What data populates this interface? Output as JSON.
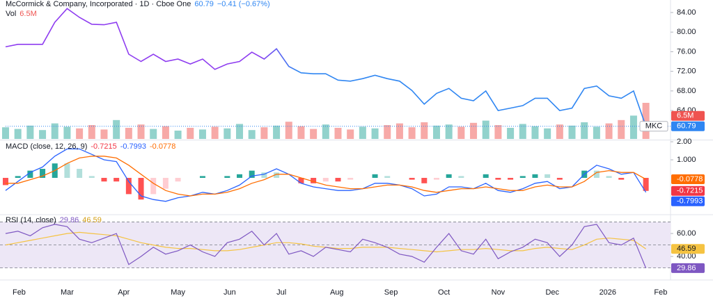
{
  "chart_data": [
    {
      "type": "line",
      "title": "McCormick & Company, Incorporated · 1D · Cboe One",
      "change": "−0.41 (−0.67%)",
      "symbol": "MKC",
      "colors": [
        "#8e3cf0",
        "#2f86f2"
      ],
      "series": [
        {
          "color": "#2f86f2",
          "values": [
            77,
            77.5,
            77.5,
            77.5,
            82,
            84.8,
            83,
            81.6,
            81.5,
            82,
            75.5,
            74,
            75.5,
            74,
            74.5,
            73.5,
            74.5,
            72.4,
            73.5,
            74,
            75.9,
            74.5,
            76.6,
            73,
            71.7,
            71.5,
            71.5,
            70.2,
            70,
            70.5,
            71.2,
            70.5,
            70,
            68.1,
            65.3,
            67.5,
            68.5,
            66.5,
            66,
            68,
            64,
            64.5,
            65,
            66.5,
            66.5,
            64,
            64.5,
            68.5,
            69,
            67,
            66.5,
            68,
            60.79
          ]
        }
      ],
      "volume": {
        "name": "Vol",
        "last_label": "6.5M",
        "up_color": "#26a69a",
        "down_color": "#ef5350",
        "ylim": [
          0,
          25
        ],
        "values": [
          2.1,
          1.8,
          2.4,
          1.6,
          2.8,
          2.2,
          1.9,
          2.5,
          1.7,
          3.4,
          2.0,
          2.6,
          1.8,
          2.3,
          1.5,
          2.0,
          1.7,
          2.2,
          1.9,
          2.7,
          1.6,
          2.1,
          2.4,
          3.1,
          2.3,
          1.8,
          2.6,
          2.0,
          1.7,
          2.2,
          1.9,
          2.5,
          2.8,
          2.1,
          3.0,
          2.4,
          2.6,
          2.2,
          2.9,
          3.3,
          2.5,
          2.0,
          2.7,
          2.3,
          1.9,
          2.6,
          2.4,
          3.0,
          2.2,
          2.8,
          3.4,
          4.2,
          6.5
        ]
      },
      "xlim": [
        0,
        54
      ],
      "xticks": [
        {
          "value": 1.1,
          "label": "Feb"
        },
        {
          "value": 5.0,
          "label": "Mar"
        },
        {
          "value": 9.6,
          "label": "Apr"
        },
        {
          "value": 14.0,
          "label": "May"
        },
        {
          "value": 18.2,
          "label": "Jun"
        },
        {
          "value": 22.4,
          "label": "Jul"
        },
        {
          "value": 26.9,
          "label": "Aug"
        },
        {
          "value": 31.3,
          "label": "Sep"
        },
        {
          "value": 35.6,
          "label": "Oct"
        },
        {
          "value": 40.0,
          "label": "Nov"
        },
        {
          "value": 44.4,
          "label": "Dec"
        },
        {
          "value": 48.9,
          "label": "2026"
        },
        {
          "value": 53.2,
          "label": "Feb"
        }
      ],
      "ylim": [
        58.2,
        86.55
      ],
      "yticks": [
        {
          "value": 64,
          "label": "64.00"
        },
        {
          "value": 68,
          "label": "68.00"
        },
        {
          "value": 72,
          "label": "72.00"
        },
        {
          "value": 76,
          "label": "76.00"
        },
        {
          "value": 80,
          "label": "80.00"
        },
        {
          "value": 84,
          "label": "84.00"
        }
      ]
    },
    {
      "type": "macd",
      "title": "MACD (close, 12, 26, 9)",
      "colors": [
        "#26a69a",
        "#b2dfdb",
        "#ff5252",
        "#ffcdd2"
      ],
      "series": [
        {
          "color": "#f23645",
          "values": [
            -0.4,
            0.1,
            0.4,
            0.5,
            0.8,
            0.8,
            0.5,
            0.1,
            -0.2,
            -0.2,
            -0.9,
            -1.2,
            -0.9,
            -0.6,
            -0.2,
            0.0,
            0.1,
            0.0,
            0.1,
            0.2,
            0.4,
            0.3,
            0.3,
            0.0,
            -0.3,
            -0.3,
            -0.2,
            -0.2,
            -0.1,
            0.0,
            0.2,
            0.1,
            0.0,
            -0.1,
            -0.3,
            -0.1,
            0.2,
            0.1,
            0.0,
            0.2,
            -0.1,
            -0.1,
            0.1,
            0.2,
            0.2,
            -0.1,
            0.0,
            0.4,
            0.4,
            0.1,
            -0.1,
            0.0,
            -0.7215
          ]
        },
        {
          "color": "#2962ff",
          "values": [
            -0.7,
            -0.2,
            0.3,
            0.6,
            1.2,
            1.6,
            1.6,
            1.3,
            1.0,
            0.9,
            -0.2,
            -1.0,
            -1.2,
            -1.3,
            -1.1,
            -1.0,
            -0.8,
            -0.9,
            -0.7,
            -0.4,
            0.1,
            0.2,
            0.5,
            0.2,
            -0.3,
            -0.5,
            -0.6,
            -0.7,
            -0.7,
            -0.6,
            -0.3,
            -0.3,
            -0.4,
            -0.6,
            -1.0,
            -0.9,
            -0.5,
            -0.5,
            -0.6,
            -0.3,
            -0.7,
            -0.8,
            -0.6,
            -0.3,
            -0.2,
            -0.6,
            -0.5,
            0.2,
            0.7,
            0.5,
            0.2,
            0.3,
            -0.7993
          ]
        },
        {
          "color": "#ff6d00",
          "values": [
            -0.3,
            -0.3,
            -0.1,
            0.1,
            0.4,
            0.8,
            1.1,
            1.2,
            1.2,
            1.1,
            0.7,
            0.2,
            -0.3,
            -0.7,
            -0.9,
            -1.0,
            -0.9,
            -0.9,
            -0.8,
            -0.6,
            -0.3,
            -0.1,
            0.2,
            0.2,
            0.0,
            -0.2,
            -0.4,
            -0.5,
            -0.6,
            -0.6,
            -0.5,
            -0.4,
            -0.4,
            -0.5,
            -0.7,
            -0.8,
            -0.7,
            -0.6,
            -0.6,
            -0.5,
            -0.6,
            -0.7,
            -0.7,
            -0.5,
            -0.4,
            -0.5,
            -0.5,
            -0.2,
            0.3,
            0.4,
            0.3,
            0.3,
            -0.0778
          ]
        }
      ],
      "ylim": [
        -2.0,
        2.04
      ],
      "yticks": [
        {
          "value": 1,
          "label": "1.000"
        },
        {
          "value": 2,
          "label": "2.00"
        }
      ]
    },
    {
      "type": "rsi",
      "title": "RSI (14, close)",
      "band_color": "#ede7f6",
      "levels": [
        70,
        50,
        30
      ],
      "series": [
        {
          "color": "#7e57c2",
          "values": [
            60,
            62,
            58,
            65,
            68,
            66,
            55,
            52,
            56,
            60,
            33,
            40,
            48,
            42,
            45,
            50,
            44,
            40,
            52,
            55,
            62,
            50,
            60,
            42,
            45,
            40,
            48,
            46,
            44,
            55,
            52,
            48,
            42,
            40,
            35,
            48,
            60,
            45,
            42,
            55,
            38,
            44,
            48,
            55,
            52,
            40,
            50,
            66,
            68,
            52,
            50,
            56,
            29.86
          ]
        },
        {
          "color": "#f5c342",
          "values": [
            50,
            52,
            54,
            56,
            58,
            60,
            61,
            60,
            59,
            58,
            55,
            52,
            50,
            48,
            47,
            47,
            46,
            45,
            45,
            46,
            48,
            50,
            52,
            52,
            51,
            49,
            48,
            47,
            47,
            48,
            48,
            48,
            47,
            46,
            45,
            44,
            45,
            46,
            46,
            47,
            46,
            45,
            45,
            47,
            48,
            47,
            46,
            50,
            55,
            56,
            55,
            54,
            46.59
          ]
        }
      ],
      "ylim": [
        21.3,
        75.8
      ],
      "yticks": [
        {
          "value": 40,
          "label": "40.00"
        },
        {
          "value": 60,
          "label": "60.00"
        }
      ]
    }
  ]
}
